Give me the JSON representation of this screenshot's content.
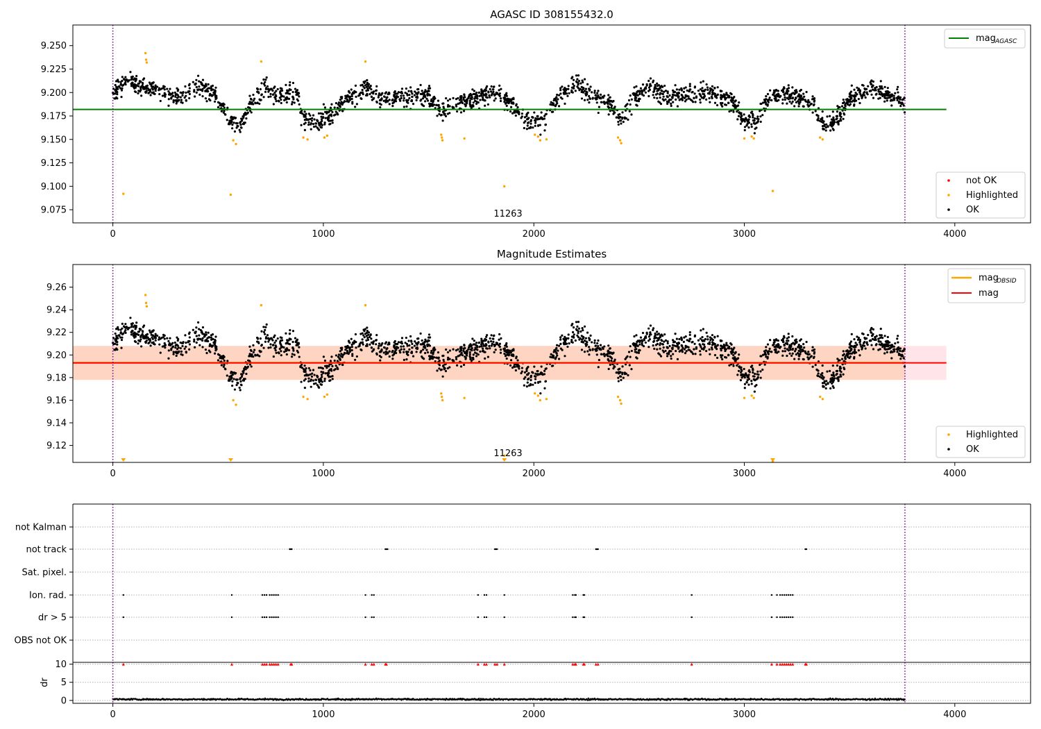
{
  "chart_data": [
    {
      "type": "scatter",
      "title": "AGASC ID 308155432.0",
      "xlim": [
        -190,
        4360
      ],
      "ylim": [
        9.061,
        9.272
      ],
      "xticks": [
        0,
        1000,
        2000,
        3000,
        4000
      ],
      "yticks": [
        9.075,
        9.1,
        9.125,
        9.15,
        9.175,
        9.2,
        9.225,
        9.25
      ],
      "ytick_labels": [
        "9.075",
        "9.100",
        "9.125",
        "9.150",
        "9.175",
        "9.200",
        "9.225",
        "9.250"
      ],
      "reference_line": {
        "label": "mag",
        "label_sub": "AGASC",
        "value": 9.182,
        "x_range": [
          -190,
          3960
        ],
        "color": "#008000"
      },
      "vlines": [
        0,
        3763
      ],
      "annotation": {
        "text": "11263",
        "x": 1880,
        "y": 9.069
      },
      "series": [
        {
          "name": "not OK",
          "color": "#ff0000",
          "points": []
        },
        {
          "name": "Highlighted",
          "color": "#ffa500",
          "points": [
            [
              50,
              9.092
            ],
            [
              155,
              9.242
            ],
            [
              158,
              9.235
            ],
            [
              161,
              9.232
            ],
            [
              560,
              9.091
            ],
            [
              572,
              9.149
            ],
            [
              585,
              9.145
            ],
            [
              705,
              9.233
            ],
            [
              905,
              9.152
            ],
            [
              925,
              9.15
            ],
            [
              1005,
              9.152
            ],
            [
              1018,
              9.154
            ],
            [
              1200,
              9.233
            ],
            [
              1560,
              9.155
            ],
            [
              1563,
              9.152
            ],
            [
              1566,
              9.149
            ],
            [
              1670,
              9.151
            ],
            [
              1860,
              9.1
            ],
            [
              2005,
              9.155
            ],
            [
              2020,
              9.153
            ],
            [
              2030,
              9.149
            ],
            [
              2060,
              9.15
            ],
            [
              2400,
              9.152
            ],
            [
              2410,
              9.149
            ],
            [
              2415,
              9.146
            ],
            [
              3000,
              9.151
            ],
            [
              3035,
              9.153
            ],
            [
              3045,
              9.151
            ],
            [
              3135,
              9.095
            ],
            [
              3360,
              9.152
            ],
            [
              3372,
              9.15
            ]
          ]
        },
        {
          "name": "OK",
          "color": "#000000",
          "points": []
        }
      ],
      "ok_profile": {
        "x_range": [
          0,
          3763
        ],
        "count": 2200,
        "knots": [
          [
            0,
            9.2
          ],
          [
            60,
            9.212
          ],
          [
            150,
            9.207
          ],
          [
            250,
            9.2
          ],
          [
            330,
            9.194
          ],
          [
            400,
            9.209
          ],
          [
            480,
            9.201
          ],
          [
            510,
            9.188
          ],
          [
            560,
            9.17
          ],
          [
            600,
            9.163
          ],
          [
            660,
            9.19
          ],
          [
            720,
            9.205
          ],
          [
            780,
            9.196
          ],
          [
            840,
            9.2
          ],
          [
            880,
            9.198
          ],
          [
            900,
            9.172
          ],
          [
            950,
            9.168
          ],
          [
            1030,
            9.176
          ],
          [
            1100,
            9.192
          ],
          [
            1200,
            9.203
          ],
          [
            1300,
            9.193
          ],
          [
            1400,
            9.195
          ],
          [
            1500,
            9.197
          ],
          [
            1560,
            9.18
          ],
          [
            1600,
            9.185
          ],
          [
            1700,
            9.193
          ],
          [
            1800,
            9.2
          ],
          [
            1900,
            9.188
          ],
          [
            1950,
            9.172
          ],
          [
            2050,
            9.17
          ],
          [
            2100,
            9.19
          ],
          [
            2200,
            9.208
          ],
          [
            2300,
            9.195
          ],
          [
            2370,
            9.188
          ],
          [
            2410,
            9.168
          ],
          [
            2480,
            9.195
          ],
          [
            2550,
            9.205
          ],
          [
            2650,
            9.195
          ],
          [
            2750,
            9.198
          ],
          [
            2850,
            9.2
          ],
          [
            2950,
            9.19
          ],
          [
            3000,
            9.168
          ],
          [
            3060,
            9.17
          ],
          [
            3100,
            9.19
          ],
          [
            3150,
            9.2
          ],
          [
            3250,
            9.196
          ],
          [
            3330,
            9.188
          ],
          [
            3380,
            9.162
          ],
          [
            3430,
            9.17
          ],
          [
            3500,
            9.193
          ],
          [
            3600,
            9.205
          ],
          [
            3700,
            9.197
          ],
          [
            3763,
            9.19
          ]
        ],
        "spread": 0.0085
      },
      "legends": {
        "lines": "top-right",
        "points": "bottom-right"
      }
    },
    {
      "type": "scatter",
      "title": "Magnitude Estimates",
      "xlim": [
        -190,
        4360
      ],
      "ylim": [
        9.105,
        9.28
      ],
      "xticks": [
        0,
        1000,
        2000,
        3000,
        4000
      ],
      "yticks": [
        9.12,
        9.14,
        9.16,
        9.18,
        9.2,
        9.22,
        9.24,
        9.26
      ],
      "ytick_labels": [
        "9.12",
        "9.14",
        "9.16",
        "9.18",
        "9.20",
        "9.22",
        "9.24",
        "9.26"
      ],
      "band": {
        "y_range": [
          9.178,
          9.208
        ],
        "x_range": [
          -190,
          3960
        ],
        "colors": [
          "#ffe5ea",
          "#fdd5c2"
        ]
      },
      "lines": [
        {
          "name": "mag",
          "name_sub": "OBSID",
          "color": "#ffa500",
          "value": 9.193
        },
        {
          "name": "mag",
          "color": "#ff0000",
          "value": 9.193
        }
      ],
      "vlines": [
        0,
        3763
      ],
      "annotation": {
        "text": "11263",
        "x": 1880,
        "y": 9.112
      },
      "offscale_markers": [
        50,
        560,
        1860,
        3135
      ],
      "series": [
        {
          "name": "Highlighted",
          "color": "#ffa500"
        },
        {
          "name": "OK",
          "color": "#000000"
        }
      ],
      "legends": {
        "lines": "top-right",
        "points": "bottom-right"
      }
    },
    {
      "type": "scatter",
      "title": "",
      "xlim": [
        -190,
        4360
      ],
      "xticks": [
        0,
        1000,
        2000,
        3000,
        4000
      ],
      "categories": [
        "not Kalman",
        "not track",
        "Sat. pixel.",
        "Ion. rad.",
        "dr > 5",
        "OBS not OK"
      ],
      "vlines": [
        0,
        3763
      ],
      "flags": {
        "not Kalman": [],
        "not track": [
          840,
          845,
          850,
          1295,
          1300,
          1305,
          1815,
          1820,
          1825,
          2295,
          2300,
          2305,
          3290,
          3295
        ],
        "Sat. pixel.": [],
        "Ion. rad.": [
          50,
          565,
          710,
          720,
          730,
          745,
          755,
          765,
          775,
          785,
          1200,
          1230,
          1240,
          1735,
          1765,
          1775,
          1860,
          2185,
          2195,
          2200,
          2235,
          2240,
          2750,
          3130,
          3155,
          3170,
          3180,
          3190,
          3200,
          3210,
          3220,
          3230
        ],
        "dr > 5": [
          50,
          565,
          710,
          720,
          730,
          745,
          755,
          765,
          775,
          785,
          1200,
          1230,
          1240,
          1735,
          1765,
          1775,
          1860,
          2185,
          2195,
          2200,
          2235,
          2240,
          2750,
          3130,
          3155,
          3170,
          3180,
          3190,
          3200,
          3210,
          3220,
          3230
        ],
        "OBS not OK": []
      }
    },
    {
      "type": "scatter",
      "ylabel": "dr",
      "xlim": [
        -190,
        4360
      ],
      "ylim": [
        -0.8,
        10.5
      ],
      "xticks": [
        0,
        1000,
        2000,
        3000,
        4000
      ],
      "yticks": [
        0,
        5,
        10
      ],
      "ytick_labels": [
        "0",
        "5",
        "10"
      ],
      "vlines": [
        0,
        3763
      ],
      "clipped_value": 10,
      "clipped_markers": [
        50,
        565,
        710,
        720,
        730,
        745,
        755,
        765,
        775,
        785,
        845,
        850,
        1200,
        1230,
        1240,
        1295,
        1300,
        1735,
        1765,
        1775,
        1815,
        1825,
        1860,
        2185,
        2195,
        2200,
        2235,
        2240,
        2295,
        2305,
        2750,
        3130,
        3155,
        3170,
        3180,
        3190,
        3200,
        3210,
        3220,
        3230,
        3290,
        3295
      ],
      "baseline": {
        "mean": 0.3,
        "spread": 0.18,
        "x_range": [
          0,
          3763
        ]
      }
    }
  ]
}
